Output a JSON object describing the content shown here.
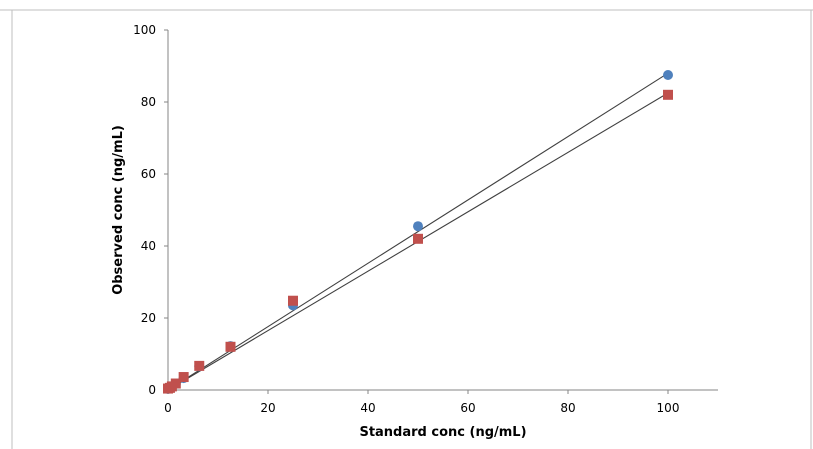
{
  "chart_data": {
    "type": "scatter",
    "title": "",
    "xlabel": "Standard conc (ng/mL)",
    "ylabel": "Observed conc (ng/mL)",
    "xlim": [
      0,
      110
    ],
    "ylim": [
      0,
      100
    ],
    "xticks": [
      0,
      20,
      40,
      60,
      80,
      100
    ],
    "yticks": [
      0,
      20,
      40,
      60,
      80,
      100
    ],
    "grid": false,
    "legend": "none",
    "series": [
      {
        "marker": "circle",
        "color": "#4f81bd",
        "x": [
          0,
          0.39,
          0.78,
          1.56,
          3.13,
          6.25,
          12.5,
          25,
          50,
          100
        ],
        "y": [
          0.3,
          0.5,
          0.9,
          1.7,
          3.3,
          6.6,
          12.2,
          23.5,
          45.5,
          87.5
        ],
        "trendline": [
          [
            0,
            0
          ],
          [
            100,
            88
          ]
        ]
      },
      {
        "marker": "square",
        "color": "#c0504d",
        "x": [
          0,
          0.39,
          0.78,
          1.56,
          3.13,
          6.25,
          12.5,
          25,
          50,
          100
        ],
        "y": [
          0.4,
          0.6,
          1.0,
          1.8,
          3.6,
          6.7,
          12.0,
          24.8,
          42.0,
          82.0
        ],
        "trendline": [
          [
            0,
            0
          ],
          [
            100,
            82.5
          ]
        ]
      }
    ]
  }
}
